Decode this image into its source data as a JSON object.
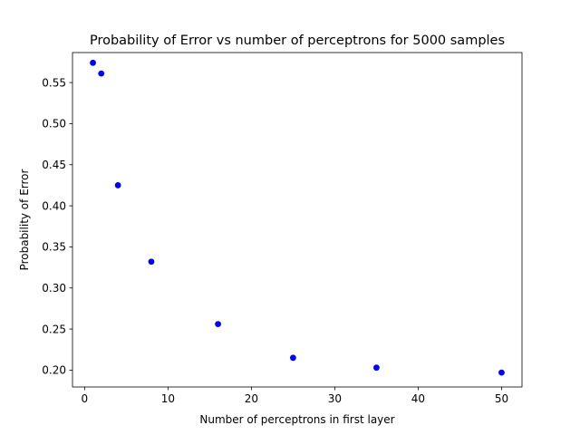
{
  "chart_data": {
    "type": "scatter",
    "title": "Probability of Error vs number of perceptrons for 5000 samples",
    "xlabel": "Number of perceptrons in first layer",
    "ylabel": "Probability of Error",
    "xlim": [
      -1.45,
      52.45
    ],
    "ylim": [
      0.1795,
      0.5865
    ],
    "xticks": [
      0,
      10,
      20,
      30,
      40,
      50
    ],
    "xtick_labels": [
      "0",
      "10",
      "20",
      "30",
      "40",
      "50"
    ],
    "yticks": [
      0.2,
      0.25,
      0.3,
      0.35,
      0.4,
      0.45,
      0.5,
      0.55
    ],
    "ytick_labels": [
      "0.20",
      "0.25",
      "0.30",
      "0.35",
      "0.40",
      "0.45",
      "0.50",
      "0.55"
    ],
    "grid": false,
    "marker_color": "#0000ff",
    "series": [
      {
        "x": [
          1,
          2,
          4,
          8,
          16,
          25,
          35,
          50
        ],
        "y": [
          0.574,
          0.561,
          0.425,
          0.332,
          0.256,
          0.215,
          0.203,
          0.197
        ]
      }
    ]
  }
}
